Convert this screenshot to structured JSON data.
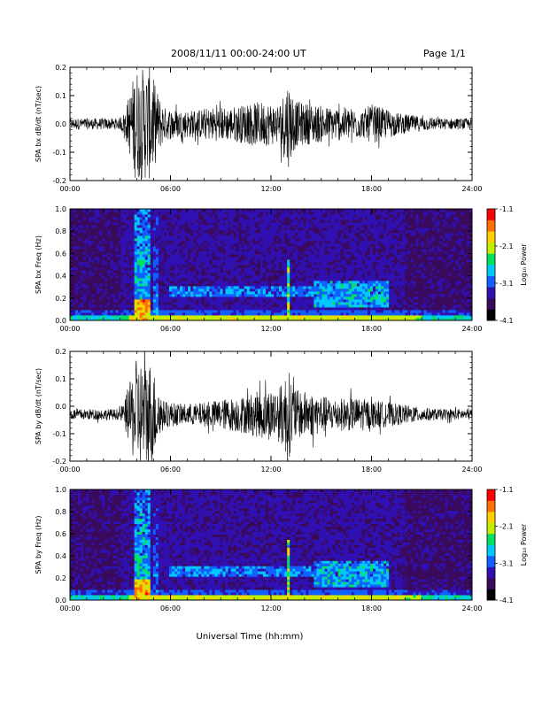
{
  "header": {
    "title": "2008/11/11  00:00-24:00 UT",
    "page": "Page 1/1"
  },
  "xlabel": "Universal Time (hh:mm)",
  "chart_data": [
    {
      "type": "line",
      "ylabel": "SPA bx dB/dt (nT/sec)",
      "xlim": [
        0,
        24
      ],
      "ylim": [
        -0.2,
        0.2
      ],
      "xticks": [
        "00:00",
        "06:00",
        "12:00",
        "18:00",
        "24:00"
      ],
      "yticks": [
        "-0.2",
        "-0.1",
        "0.0",
        "0.1",
        "0.2"
      ],
      "baseline": 0.0,
      "envelope": [
        [
          0,
          0.02
        ],
        [
          3,
          0.02
        ],
        [
          3.3,
          0.05
        ],
        [
          3.6,
          0.12
        ],
        [
          3.9,
          0.2
        ],
        [
          4.3,
          0.2
        ],
        [
          4.8,
          0.2
        ],
        [
          5.2,
          0.12
        ],
        [
          5.6,
          0.06
        ],
        [
          6.5,
          0.05
        ],
        [
          7.5,
          0.05
        ],
        [
          8.5,
          0.06
        ],
        [
          9.5,
          0.06
        ],
        [
          10.5,
          0.07
        ],
        [
          11.5,
          0.08
        ],
        [
          12.5,
          0.07
        ],
        [
          13,
          0.16
        ],
        [
          13.5,
          0.08
        ],
        [
          14.5,
          0.07
        ],
        [
          15.5,
          0.06
        ],
        [
          16.5,
          0.06
        ],
        [
          17.5,
          0.05
        ],
        [
          18,
          0.07
        ],
        [
          18.5,
          0.06
        ],
        [
          19.5,
          0.04
        ],
        [
          20.5,
          0.03
        ],
        [
          22,
          0.02
        ],
        [
          24,
          0.02
        ]
      ]
    },
    {
      "type": "heatmap",
      "ylabel": "SPA bx Freq (Hz)",
      "xlim": [
        0,
        24
      ],
      "ylim": [
        0,
        1.0
      ],
      "xticks": [
        "00:00",
        "06:00",
        "12:00",
        "18:00",
        "24:00"
      ],
      "yticks": [
        "0.0",
        "0.2",
        "0.4",
        "0.6",
        "0.8",
        "1.0"
      ],
      "colorbar": {
        "label": "Log₁₀ Power",
        "range": [
          -4.1,
          -1.1
        ],
        "ticks": [
          "-1.1",
          "-2.1",
          "-3.1",
          "-4.1"
        ]
      },
      "colorscale": [
        "#000000",
        "#3a0a5c",
        "#3010b0",
        "#1060ff",
        "#00c8ff",
        "#00e060",
        "#c0f000",
        "#ffd000",
        "#ff7000",
        "#ff0000"
      ],
      "features": [
        {
          "t": [
            3.9,
            4.8
          ],
          "f": [
            0,
            1.0
          ],
          "level": 0.55
        },
        {
          "t": [
            5.0,
            5.2
          ],
          "f": [
            0,
            1.0
          ],
          "level": 0.4
        },
        {
          "t": [
            5.9,
            14.5
          ],
          "f": [
            0.22,
            0.32
          ],
          "level": 0.45
        },
        {
          "t": [
            12.9,
            13.1
          ],
          "f": [
            0,
            0.55
          ],
          "level": 0.75
        },
        {
          "t": [
            14.5,
            19.0
          ],
          "f": [
            0.12,
            0.35
          ],
          "level": 0.5
        }
      ]
    },
    {
      "type": "line",
      "ylabel": "SPA by dB/dt (nT/sec)",
      "xlim": [
        0,
        24
      ],
      "ylim": [
        -0.2,
        0.2
      ],
      "xticks": [
        "00:00",
        "06:00",
        "12:00",
        "18:00",
        "24:00"
      ],
      "yticks": [
        "-0.2",
        "-0.1",
        "0.0",
        "0.1",
        "0.2"
      ],
      "baseline": -0.03,
      "envelope": [
        [
          0,
          0.02
        ],
        [
          3,
          0.02
        ],
        [
          3.3,
          0.06
        ],
        [
          3.6,
          0.12
        ],
        [
          3.9,
          0.2
        ],
        [
          4.3,
          0.2
        ],
        [
          4.8,
          0.2
        ],
        [
          5.2,
          0.12
        ],
        [
          5.6,
          0.05
        ],
        [
          6.5,
          0.04
        ],
        [
          7.5,
          0.04
        ],
        [
          8.5,
          0.05
        ],
        [
          9.5,
          0.06
        ],
        [
          10.5,
          0.07
        ],
        [
          11.5,
          0.09
        ],
        [
          12.5,
          0.1
        ],
        [
          13,
          0.17
        ],
        [
          13.5,
          0.09
        ],
        [
          14.5,
          0.08
        ],
        [
          15.5,
          0.06
        ],
        [
          16.5,
          0.06
        ],
        [
          17.5,
          0.06
        ],
        [
          18,
          0.05
        ],
        [
          18.5,
          0.05
        ],
        [
          19.5,
          0.04
        ],
        [
          20.5,
          0.03
        ],
        [
          22,
          0.02
        ],
        [
          24,
          0.02
        ]
      ]
    },
    {
      "type": "heatmap",
      "ylabel": "SPA by Freq (Hz)",
      "xlim": [
        0,
        24
      ],
      "ylim": [
        0,
        1.0
      ],
      "xticks": [
        "00:00",
        "06:00",
        "12:00",
        "18:00",
        "24:00"
      ],
      "yticks": [
        "0.0",
        "0.2",
        "0.4",
        "0.6",
        "0.8",
        "1.0"
      ],
      "colorbar": {
        "label": "Log₁₀ Power",
        "range": [
          -4.1,
          -1.1
        ],
        "ticks": [
          "-1.1",
          "-2.1",
          "-3.1",
          "-4.1"
        ]
      },
      "colorscale": [
        "#000000",
        "#3a0a5c",
        "#3010b0",
        "#1060ff",
        "#00c8ff",
        "#00e060",
        "#c0f000",
        "#ffd000",
        "#ff7000",
        "#ff0000"
      ],
      "features": [
        {
          "t": [
            3.9,
            4.8
          ],
          "f": [
            0,
            1.0
          ],
          "level": 0.55
        },
        {
          "t": [
            5.0,
            5.2
          ],
          "f": [
            0,
            1.0
          ],
          "level": 0.4
        },
        {
          "t": [
            6.0,
            14.5
          ],
          "f": [
            0.22,
            0.32
          ],
          "level": 0.45
        },
        {
          "t": [
            12.9,
            13.1
          ],
          "f": [
            0,
            0.55
          ],
          "level": 0.75
        },
        {
          "t": [
            14.5,
            19.0
          ],
          "f": [
            0.12,
            0.35
          ],
          "level": 0.5
        }
      ]
    }
  ]
}
